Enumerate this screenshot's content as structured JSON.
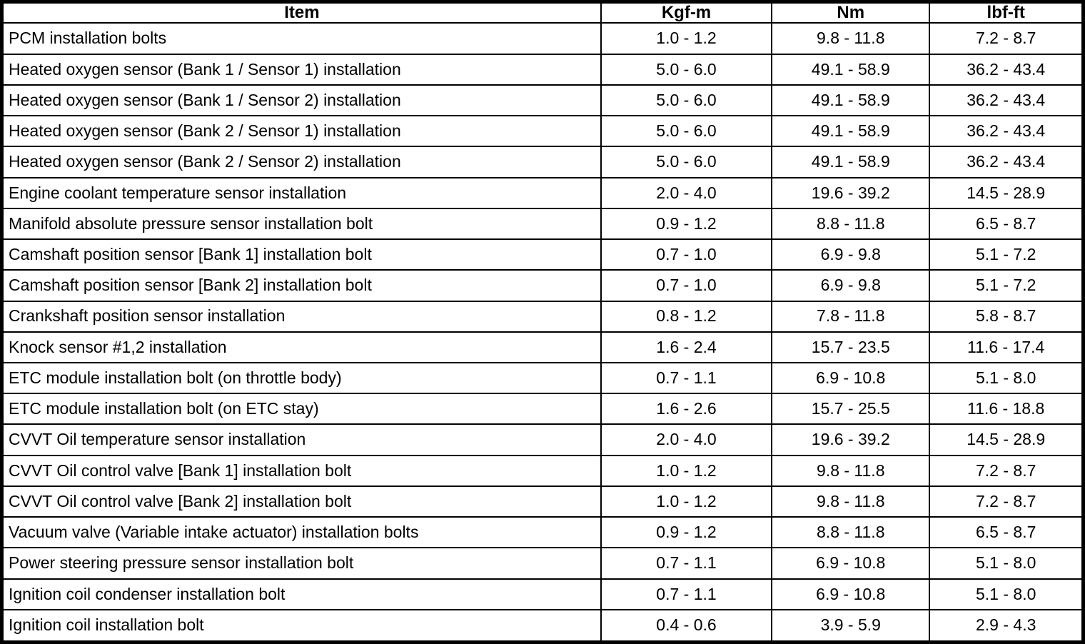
{
  "colors": {
    "border": "#000000",
    "text": "#000000",
    "background": "#ffffff"
  },
  "table": {
    "columns": [
      "Item",
      "Kgf-m",
      "Nm",
      "lbf-ft"
    ],
    "rows": [
      {
        "item": "PCM installation bolts",
        "kgf_m": "1.0 - 1.2",
        "nm": "9.8 - 11.8",
        "lbf_ft": "7.2 - 8.7"
      },
      {
        "item": "Heated oxygen sensor (Bank 1 / Sensor 1) installation",
        "kgf_m": "5.0 - 6.0",
        "nm": "49.1 - 58.9",
        "lbf_ft": "36.2 - 43.4"
      },
      {
        "item": "Heated oxygen sensor (Bank 1 / Sensor 2) installation",
        "kgf_m": "5.0 - 6.0",
        "nm": "49.1 - 58.9",
        "lbf_ft": "36.2 - 43.4"
      },
      {
        "item": "Heated oxygen sensor (Bank 2 / Sensor 1) installation",
        "kgf_m": "5.0 - 6.0",
        "nm": "49.1 - 58.9",
        "lbf_ft": "36.2 - 43.4"
      },
      {
        "item": "Heated oxygen sensor (Bank 2 / Sensor 2) installation",
        "kgf_m": "5.0 - 6.0",
        "nm": "49.1 - 58.9",
        "lbf_ft": "36.2 - 43.4"
      },
      {
        "item": "Engine coolant temperature sensor installation",
        "kgf_m": "2.0 - 4.0",
        "nm": "19.6 - 39.2",
        "lbf_ft": "14.5 - 28.9"
      },
      {
        "item": "Manifold absolute pressure sensor installation bolt",
        "kgf_m": "0.9 - 1.2",
        "nm": "8.8 - 11.8",
        "lbf_ft": "6.5 - 8.7"
      },
      {
        "item": "Camshaft position sensor [Bank 1] installation bolt",
        "kgf_m": "0.7 - 1.0",
        "nm": "6.9 - 9.8",
        "lbf_ft": "5.1 - 7.2"
      },
      {
        "item": "Camshaft position sensor [Bank 2] installation bolt",
        "kgf_m": "0.7 - 1.0",
        "nm": "6.9 - 9.8",
        "lbf_ft": "5.1 - 7.2"
      },
      {
        "item": "Crankshaft position sensor installation",
        "kgf_m": "0.8 - 1.2",
        "nm": "7.8 - 11.8",
        "lbf_ft": "5.8 - 8.7"
      },
      {
        "item": "Knock sensor #1,2 installation",
        "kgf_m": "1.6 - 2.4",
        "nm": "15.7 - 23.5",
        "lbf_ft": "11.6 - 17.4"
      },
      {
        "item": "ETC module installation bolt (on throttle body)",
        "kgf_m": "0.7 - 1.1",
        "nm": "6.9 - 10.8",
        "lbf_ft": "5.1 - 8.0"
      },
      {
        "item": "ETC module installation bolt (on ETC stay)",
        "kgf_m": "1.6 - 2.6",
        "nm": "15.7 - 25.5",
        "lbf_ft": "11.6 - 18.8"
      },
      {
        "item": "CVVT Oil temperature sensor installation",
        "kgf_m": "2.0 - 4.0",
        "nm": "19.6 - 39.2",
        "lbf_ft": "14.5 - 28.9"
      },
      {
        "item": "CVVT Oil control valve [Bank 1] installation bolt",
        "kgf_m": "1.0 - 1.2",
        "nm": "9.8 - 11.8",
        "lbf_ft": "7.2 - 8.7"
      },
      {
        "item": "CVVT Oil control valve [Bank 2] installation bolt",
        "kgf_m": "1.0 - 1.2",
        "nm": "9.8 - 11.8",
        "lbf_ft": "7.2 - 8.7"
      },
      {
        "item": "Vacuum valve (Variable intake actuator) installation bolts",
        "kgf_m": "0.9 - 1.2",
        "nm": "8.8 - 11.8",
        "lbf_ft": "6.5 - 8.7"
      },
      {
        "item": "Power steering pressure sensor installation bolt",
        "kgf_m": "0.7 - 1.1",
        "nm": "6.9 - 10.8",
        "lbf_ft": "5.1 - 8.0"
      },
      {
        "item": "Ignition coil condenser installation bolt",
        "kgf_m": "0.7 - 1.1",
        "nm": "6.9 - 10.8",
        "lbf_ft": "5.1 - 8.0"
      },
      {
        "item": "Ignition coil installation bolt",
        "kgf_m": "0.4 - 0.6",
        "nm": "3.9 - 5.9",
        "lbf_ft": "2.9 - 4.3"
      }
    ]
  }
}
